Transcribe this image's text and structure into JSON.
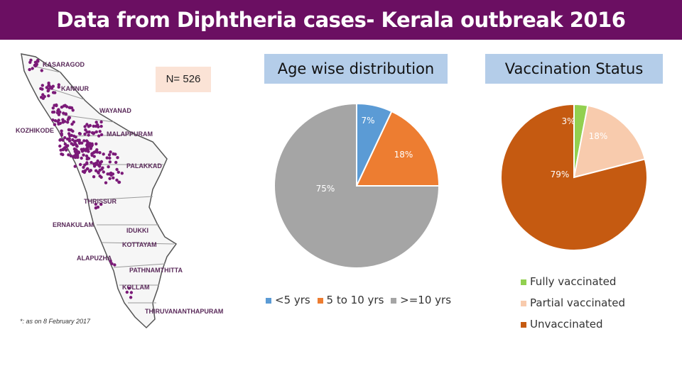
{
  "header": {
    "title": "Data from Diphtheria cases- Kerala outbreak 2016"
  },
  "map": {
    "districts": [
      "KASARAGOD",
      "KANNUR",
      "WAYANAD",
      "KOZHIKODE",
      "MALAPPURAM",
      "PALAKKAD",
      "THRISSUR",
      "ERNAKULAM",
      "IDUKKI",
      "KOTTAYAM",
      "ALAPUZHA",
      "PATHNAMTHITTA",
      "KOLLAM",
      "THIRUVANANTHAPURAM"
    ],
    "note": "*: as on 8 February 2017",
    "dot_color": "#7b1a78"
  },
  "n_box": {
    "label": "N= 526"
  },
  "chart_data": [
    {
      "type": "pie",
      "title": "Age wise distribution",
      "categories": [
        "<5 yrs",
        "5 to 10 yrs",
        ">=10 yrs"
      ],
      "values": [
        7,
        18,
        75
      ],
      "labels": [
        "7%",
        "18%",
        "75%"
      ],
      "colors": [
        "#5b9bd5",
        "#ed7d31",
        "#a5a5a5"
      ],
      "legend_position": "bottom"
    },
    {
      "type": "pie",
      "title": "Vaccination Status",
      "categories": [
        "Fully vaccinated",
        "Partial vaccinated",
        "Unvaccinated"
      ],
      "values": [
        3,
        18,
        79
      ],
      "labels": [
        "3%",
        "18%",
        "79%"
      ],
      "colors": [
        "#92d050",
        "#f8cbad",
        "#c55a11"
      ],
      "legend_position": "bottom-right"
    }
  ]
}
